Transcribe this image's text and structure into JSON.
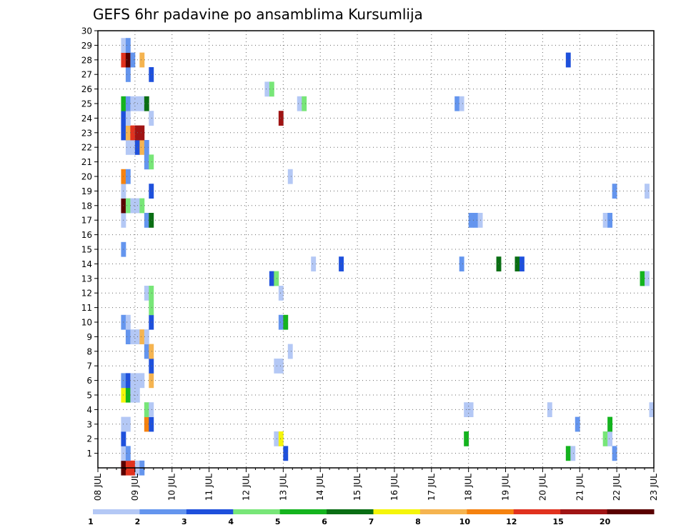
{
  "chart_data": {
    "type": "heatmap",
    "title": "GEFS 6hr padavine po ansamblima Kursumlija",
    "xlabel": "",
    "ylabel": "",
    "x_ticks": [
      "08 JUL",
      "09 JUL",
      "10 JUL",
      "11 JUL",
      "12 JUL",
      "13 JUL",
      "14 JUL",
      "15 JUL",
      "16 JUL",
      "17 JUL",
      "18 JUL",
      "19 JUL",
      "20 JUL",
      "21 JUL",
      "22 JUL",
      "23 JUL"
    ],
    "x_range_days": [
      8,
      23
    ],
    "y_ticks": [
      1,
      2,
      3,
      4,
      5,
      6,
      7,
      8,
      9,
      10,
      11,
      12,
      13,
      14,
      15,
      16,
      17,
      18,
      19,
      20,
      21,
      22,
      23,
      24,
      25,
      26,
      27,
      28,
      29,
      30
    ],
    "y_range": [
      0,
      30
    ],
    "grid": true,
    "colorbar": {
      "labels": [
        "1",
        "2",
        "3",
        "4",
        "5",
        "6",
        "7",
        "8",
        "10",
        "12",
        "15",
        "20"
      ],
      "colors": [
        "#b4c8f5",
        "#6495ee",
        "#1e50dc",
        "#78e678",
        "#14b41e",
        "#0a6e14",
        "#f5f50a",
        "#f5b450",
        "#f5820f",
        "#e1321e",
        "#a01414",
        "#5a0000"
      ]
    },
    "cells": [
      {
        "day": 8.625,
        "member": 0,
        "level": 12
      },
      {
        "day": 8.75,
        "member": 0,
        "level": 10
      },
      {
        "day": 8.875,
        "member": 0,
        "level": 10
      },
      {
        "day": 9.0,
        "member": 0,
        "level": 1
      },
      {
        "day": 9.125,
        "member": 0,
        "level": 2
      },
      {
        "day": 8.625,
        "member": 1,
        "level": 1
      },
      {
        "day": 8.75,
        "member": 1,
        "level": 2
      },
      {
        "day": 13.0,
        "member": 1,
        "level": 3
      },
      {
        "day": 20.625,
        "member": 1,
        "level": 5
      },
      {
        "day": 20.75,
        "member": 1,
        "level": 1
      },
      {
        "day": 21.875,
        "member": 1,
        "level": 2
      },
      {
        "day": 8.625,
        "member": 2,
        "level": 3
      },
      {
        "day": 12.75,
        "member": 2,
        "level": 1
      },
      {
        "day": 12.875,
        "member": 2,
        "level": 7
      },
      {
        "day": 17.875,
        "member": 2,
        "level": 5
      },
      {
        "day": 21.625,
        "member": 2,
        "level": 4
      },
      {
        "day": 21.75,
        "member": 2,
        "level": 1
      },
      {
        "day": 8.625,
        "member": 3,
        "level": 1
      },
      {
        "day": 8.75,
        "member": 3,
        "level": 1
      },
      {
        "day": 9.25,
        "member": 3,
        "level": 9
      },
      {
        "day": 9.375,
        "member": 3,
        "level": 3
      },
      {
        "day": 20.875,
        "member": 3,
        "level": 2
      },
      {
        "day": 21.75,
        "member": 3,
        "level": 5
      },
      {
        "day": 9.25,
        "member": 4,
        "level": 4
      },
      {
        "day": 9.375,
        "member": 4,
        "level": 1
      },
      {
        "day": 17.875,
        "member": 4,
        "level": 1
      },
      {
        "day": 18.0,
        "member": 4,
        "level": 1
      },
      {
        "day": 20.125,
        "member": 4,
        "level": 1
      },
      {
        "day": 22.875,
        "member": 4,
        "level": 1
      },
      {
        "day": 8.625,
        "member": 5,
        "level": 7
      },
      {
        "day": 8.75,
        "member": 5,
        "level": 5
      },
      {
        "day": 8.875,
        "member": 5,
        "level": 1
      },
      {
        "day": 9.0,
        "member": 5,
        "level": 1
      },
      {
        "day": 8.625,
        "member": 6,
        "level": 2
      },
      {
        "day": 8.75,
        "member": 6,
        "level": 3
      },
      {
        "day": 8.875,
        "member": 6,
        "level": 1
      },
      {
        "day": 9.0,
        "member": 6,
        "level": 1
      },
      {
        "day": 9.125,
        "member": 6,
        "level": 1
      },
      {
        "day": 9.375,
        "member": 6,
        "level": 8
      },
      {
        "day": 9.375,
        "member": 7,
        "level": 3
      },
      {
        "day": 12.75,
        "member": 7,
        "level": 1
      },
      {
        "day": 12.875,
        "member": 7,
        "level": 1
      },
      {
        "day": 9.25,
        "member": 8,
        "level": 2
      },
      {
        "day": 9.375,
        "member": 8,
        "level": 8
      },
      {
        "day": 13.125,
        "member": 8,
        "level": 1
      },
      {
        "day": 8.75,
        "member": 9,
        "level": 2
      },
      {
        "day": 8.875,
        "member": 9,
        "level": 1
      },
      {
        "day": 9.0,
        "member": 9,
        "level": 1
      },
      {
        "day": 9.125,
        "member": 9,
        "level": 8
      },
      {
        "day": 9.25,
        "member": 9,
        "level": 1
      },
      {
        "day": 8.625,
        "member": 10,
        "level": 2
      },
      {
        "day": 8.75,
        "member": 10,
        "level": 1
      },
      {
        "day": 9.375,
        "member": 10,
        "level": 3
      },
      {
        "day": 12.875,
        "member": 10,
        "level": 2
      },
      {
        "day": 13.0,
        "member": 10,
        "level": 5
      },
      {
        "day": 9.375,
        "member": 11,
        "level": 4
      },
      {
        "day": 9.25,
        "member": 12,
        "level": 1
      },
      {
        "day": 9.375,
        "member": 12,
        "level": 4
      },
      {
        "day": 12.875,
        "member": 12,
        "level": 1
      },
      {
        "day": 12.625,
        "member": 13,
        "level": 3
      },
      {
        "day": 12.75,
        "member": 13,
        "level": 4
      },
      {
        "day": 22.625,
        "member": 13,
        "level": 5
      },
      {
        "day": 22.75,
        "member": 13,
        "level": 1
      },
      {
        "day": 13.75,
        "member": 14,
        "level": 1
      },
      {
        "day": 14.5,
        "member": 14,
        "level": 3
      },
      {
        "day": 17.75,
        "member": 14,
        "level": 2
      },
      {
        "day": 18.75,
        "member": 14,
        "level": 6
      },
      {
        "day": 19.25,
        "member": 14,
        "level": 6
      },
      {
        "day": 19.375,
        "member": 14,
        "level": 3
      },
      {
        "day": 8.625,
        "member": 15,
        "level": 2
      },
      {
        "day": 8.625,
        "member": 17,
        "level": 1
      },
      {
        "day": 9.25,
        "member": 17,
        "level": 2
      },
      {
        "day": 9.375,
        "member": 17,
        "level": 6
      },
      {
        "day": 18.0,
        "member": 17,
        "level": 2
      },
      {
        "day": 18.125,
        "member": 17,
        "level": 2
      },
      {
        "day": 18.25,
        "member": 17,
        "level": 1
      },
      {
        "day": 21.625,
        "member": 17,
        "level": 1
      },
      {
        "day": 21.75,
        "member": 17,
        "level": 2
      },
      {
        "day": 8.625,
        "member": 18,
        "level": 12
      },
      {
        "day": 8.75,
        "member": 18,
        "level": 4
      },
      {
        "day": 8.875,
        "member": 18,
        "level": 1
      },
      {
        "day": 9.0,
        "member": 18,
        "level": 1
      },
      {
        "day": 9.125,
        "member": 18,
        "level": 4
      },
      {
        "day": 8.625,
        "member": 19,
        "level": 1
      },
      {
        "day": 9.375,
        "member": 19,
        "level": 3
      },
      {
        "day": 21.875,
        "member": 19,
        "level": 2
      },
      {
        "day": 22.75,
        "member": 19,
        "level": 1
      },
      {
        "day": 8.625,
        "member": 20,
        "level": 9
      },
      {
        "day": 8.75,
        "member": 20,
        "level": 2
      },
      {
        "day": 13.125,
        "member": 20,
        "level": 1
      },
      {
        "day": 9.25,
        "member": 21,
        "level": 2
      },
      {
        "day": 9.375,
        "member": 21,
        "level": 4
      },
      {
        "day": 8.75,
        "member": 22,
        "level": 1
      },
      {
        "day": 8.875,
        "member": 22,
        "level": 1
      },
      {
        "day": 9.0,
        "member": 22,
        "level": 3
      },
      {
        "day": 9.125,
        "member": 22,
        "level": 8
      },
      {
        "day": 9.25,
        "member": 22,
        "level": 2
      },
      {
        "day": 8.625,
        "member": 23,
        "level": 3
      },
      {
        "day": 8.75,
        "member": 23,
        "level": 8
      },
      {
        "day": 8.875,
        "member": 23,
        "level": 10
      },
      {
        "day": 9.0,
        "member": 23,
        "level": 11
      },
      {
        "day": 9.125,
        "member": 23,
        "level": 11
      },
      {
        "day": 8.625,
        "member": 24,
        "level": 3
      },
      {
        "day": 8.75,
        "member": 24,
        "level": 1
      },
      {
        "day": 9.375,
        "member": 24,
        "level": 1
      },
      {
        "day": 12.875,
        "member": 24,
        "level": 11
      },
      {
        "day": 8.625,
        "member": 25,
        "level": 5
      },
      {
        "day": 8.75,
        "member": 25,
        "level": 2
      },
      {
        "day": 8.875,
        "member": 25,
        "level": 1
      },
      {
        "day": 9.0,
        "member": 25,
        "level": 1
      },
      {
        "day": 9.125,
        "member": 25,
        "level": 1
      },
      {
        "day": 9.25,
        "member": 25,
        "level": 6
      },
      {
        "day": 13.375,
        "member": 25,
        "level": 1
      },
      {
        "day": 13.5,
        "member": 25,
        "level": 4
      },
      {
        "day": 17.625,
        "member": 25,
        "level": 2
      },
      {
        "day": 17.75,
        "member": 25,
        "level": 1
      },
      {
        "day": 12.5,
        "member": 26,
        "level": 1
      },
      {
        "day": 12.625,
        "member": 26,
        "level": 4
      },
      {
        "day": 8.75,
        "member": 27,
        "level": 2
      },
      {
        "day": 9.375,
        "member": 27,
        "level": 3
      },
      {
        "day": 8.625,
        "member": 28,
        "level": 10
      },
      {
        "day": 8.75,
        "member": 28,
        "level": 12
      },
      {
        "day": 8.875,
        "member": 28,
        "level": 2
      },
      {
        "day": 9.125,
        "member": 28,
        "level": 8
      },
      {
        "day": 20.625,
        "member": 28,
        "level": 3
      },
      {
        "day": 8.625,
        "member": 29,
        "level": 1
      },
      {
        "day": 8.75,
        "member": 29,
        "level": 2
      }
    ]
  }
}
